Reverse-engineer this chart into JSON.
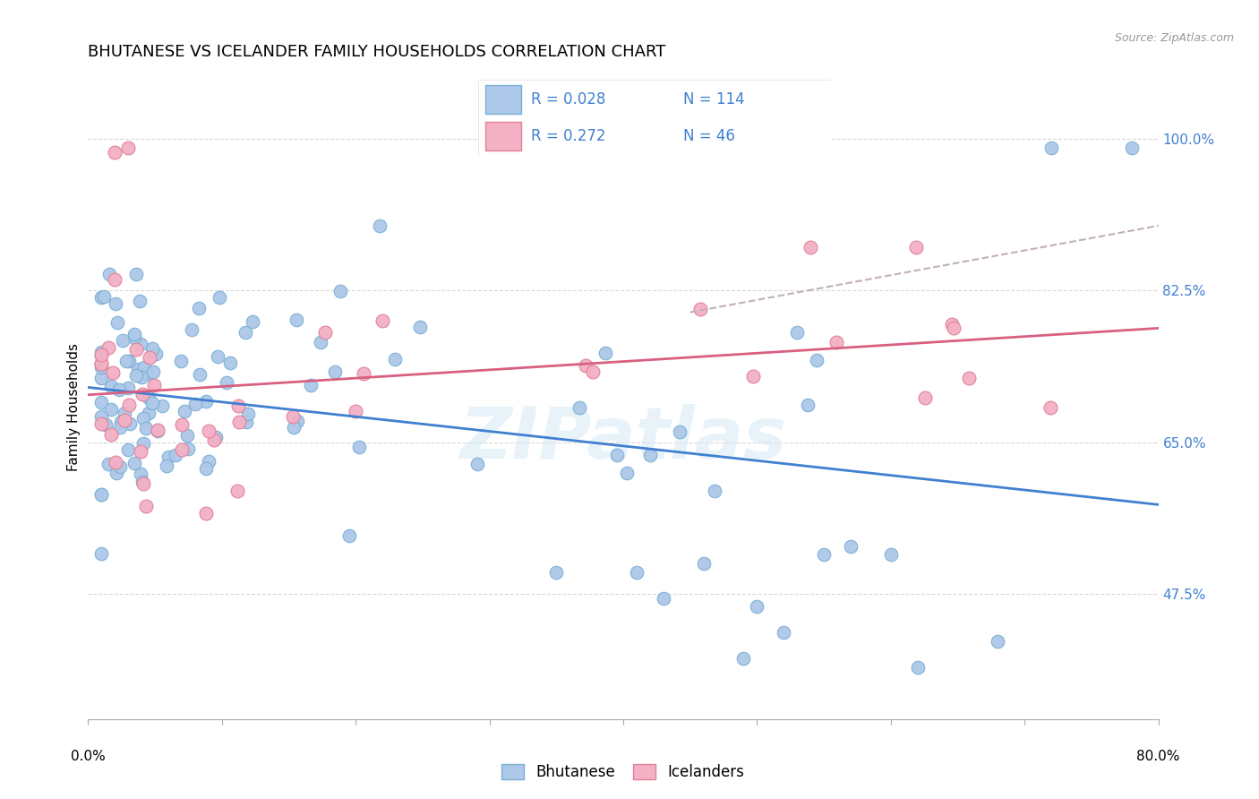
{
  "title": "BHUTANESE VS ICELANDER FAMILY HOUSEHOLDS CORRELATION CHART",
  "source": "Source: ZipAtlas.com",
  "ylabel": "Family Households",
  "ytick_labels": [
    "100.0%",
    "82.5%",
    "65.0%",
    "47.5%"
  ],
  "ytick_values": [
    1.0,
    0.825,
    0.65,
    0.475
  ],
  "xmin": 0.0,
  "xmax": 0.8,
  "ymin": 0.33,
  "ymax": 1.05,
  "bhutanese_color": "#adc8e8",
  "bhutanese_edge": "#7aafd4",
  "icelander_color": "#f4b0c4",
  "icelander_edge": "#e08098",
  "blue_line_color": "#4080d0",
  "pink_line_color": "#d86080",
  "dashed_line_color": "#c0b0b8",
  "legend_R_blue": "0.028",
  "legend_N_blue": "114",
  "legend_R_pink": "0.272",
  "legend_N_pink": "46",
  "watermark": "ZIPatlas",
  "title_fontsize": 13,
  "axis_label_fontsize": 11,
  "tick_fontsize": 11,
  "legend_text_color": "#4080d0"
}
